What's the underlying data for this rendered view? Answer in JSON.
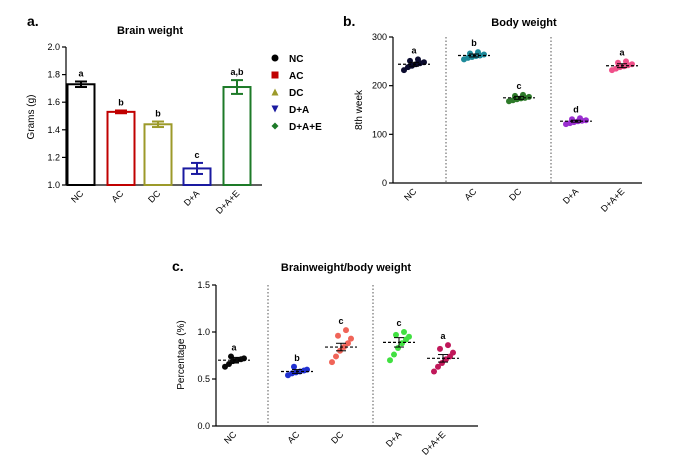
{
  "chart_data": [
    {
      "panel_label": "a.",
      "type": "bar",
      "title": "Brain weight",
      "ylabel": "Grams (g)",
      "xlabel": "",
      "ylim": [
        1.0,
        2.0
      ],
      "yticks": [
        "1.0",
        "1.2",
        "1.4",
        "1.6",
        "1.8",
        "2.0"
      ],
      "categories": [
        "NC",
        "AC",
        "DC",
        "D+A",
        "D+A+E"
      ],
      "values": [
        1.73,
        1.53,
        1.44,
        1.12,
        1.71
      ],
      "errors": [
        0.02,
        0.01,
        0.02,
        0.04,
        0.05
      ],
      "colors": [
        "#000000",
        "#c00000",
        "#9c9a2a",
        "#1a1aa0",
        "#1d7a28"
      ],
      "significance": [
        "a",
        "b",
        "b",
        "c",
        "a,b"
      ],
      "legend": {
        "position": "right",
        "items": [
          {
            "label": "NC",
            "marker": "circle",
            "color": "#000000"
          },
          {
            "label": "AC",
            "marker": "square",
            "color": "#c00000"
          },
          {
            "label": "DC",
            "marker": "triangle-up",
            "color": "#9c9a2a"
          },
          {
            "label": "D+A",
            "marker": "triangle-down",
            "color": "#1a1aa0"
          },
          {
            "label": "D+A+E",
            "marker": "diamond",
            "color": "#1d7a28"
          }
        ]
      }
    },
    {
      "panel_label": "b.",
      "type": "scatter",
      "title": "Body weight",
      "ylabel": "8th week",
      "xlabel": "",
      "ylim": [
        0,
        300
      ],
      "yticks": [
        "0",
        "100",
        "200",
        "300"
      ],
      "categories": [
        "NC",
        "AC",
        "DC",
        "D+A",
        "D+A+E"
      ],
      "means": [
        244,
        262,
        175,
        127,
        241
      ],
      "errors": [
        4,
        3,
        3,
        2,
        4
      ],
      "colors": [
        "#0b0b2e",
        "#1d8a9a",
        "#2e7a2a",
        "#9a2fd0",
        "#f0508a"
      ],
      "significance": [
        "a",
        "b",
        "c",
        "d",
        "a"
      ],
      "points": [
        [
          232,
          238,
          241,
          244,
          246,
          248,
          251,
          254
        ],
        [
          254,
          257,
          259,
          261,
          262,
          264,
          266,
          269
        ],
        [
          168,
          170,
          172,
          174,
          175,
          177,
          179,
          181
        ],
        [
          121,
          123,
          125,
          127,
          128,
          129,
          131,
          133
        ],
        [
          232,
          235,
          238,
          240,
          242,
          244,
          247,
          250
        ]
      ],
      "group_separators_after": [
        1,
        3
      ]
    },
    {
      "panel_label": "c.",
      "type": "scatter",
      "title": "Brainweight/body weight",
      "ylabel": "Percentage (%)",
      "xlabel": "",
      "ylim": [
        0.0,
        1.5
      ],
      "yticks": [
        "0.0",
        "0.5",
        "1.0",
        "1.5"
      ],
      "categories": [
        "NC",
        "AC",
        "DC",
        "D+A",
        "D+A+E"
      ],
      "means": [
        0.7,
        0.58,
        0.84,
        0.89,
        0.72
      ],
      "errors": [
        0.03,
        0.02,
        0.04,
        0.05,
        0.04
      ],
      "colors": [
        "#0a0a0a",
        "#2030d0",
        "#f06458",
        "#40e040",
        "#c0185a"
      ],
      "significance": [
        "a",
        "b",
        "c",
        "c",
        "a"
      ],
      "points": [
        [
          0.63,
          0.66,
          0.69,
          0.7,
          0.71,
          0.72,
          0.74
        ],
        [
          0.54,
          0.56,
          0.57,
          0.58,
          0.59,
          0.6,
          0.63
        ],
        [
          0.68,
          0.74,
          0.8,
          0.84,
          0.88,
          0.93,
          0.96,
          1.02
        ],
        [
          0.7,
          0.76,
          0.83,
          0.88,
          0.92,
          0.95,
          0.97,
          1.0
        ],
        [
          0.58,
          0.63,
          0.67,
          0.71,
          0.74,
          0.78,
          0.82,
          0.86
        ]
      ],
      "group_separators_after": [
        1,
        3
      ]
    }
  ]
}
